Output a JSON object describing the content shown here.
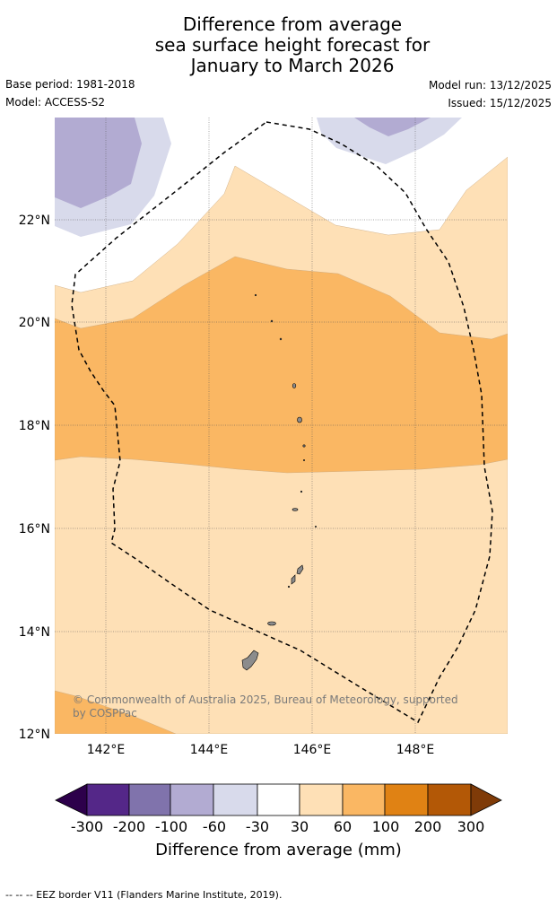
{
  "header": {
    "title_line1": "Difference from average",
    "title_line2": "sea surface height forecast for",
    "title_line3": "January to March 2026",
    "base_period": "Base period: 1981-2018",
    "model": "Model: ACCESS-S2",
    "model_run": "Model run: 13/12/2025",
    "issued": "Issued: 15/12/2025"
  },
  "map": {
    "lat_ticks": [
      "22°N",
      "20°N",
      "18°N",
      "16°N",
      "14°N",
      "12°N"
    ],
    "lon_ticks": [
      "142°E",
      "144°E",
      "146°E",
      "148°E"
    ],
    "copyright_line1": "© Commonwealth of Australia 2025, Bureau of Meteorology, supported",
    "copyright_line2": "by COSPPac"
  },
  "colorbar": {
    "labels": [
      "-300",
      "-200",
      "-100",
      "-60",
      "-30",
      "30",
      "60",
      "100",
      "200",
      "300"
    ],
    "title": "Difference from average (mm)",
    "colors": {
      "below_-300": "#2d004b",
      "-300_-200": "#542788",
      "-200_-100": "#8073ac",
      "-100_-60": "#b2abd2",
      "-60_-30": "#d8daeb",
      "-30_30": "#ffffff",
      "30_60": "#fee0b6",
      "60_100": "#fab763",
      "100_200": "#e08214",
      "200_300": "#b35806",
      "above_300": "#7f3b08"
    }
  },
  "footnote": "--  --  -- EEZ border V11 (Flanders Marine Institute, 2019)."
}
